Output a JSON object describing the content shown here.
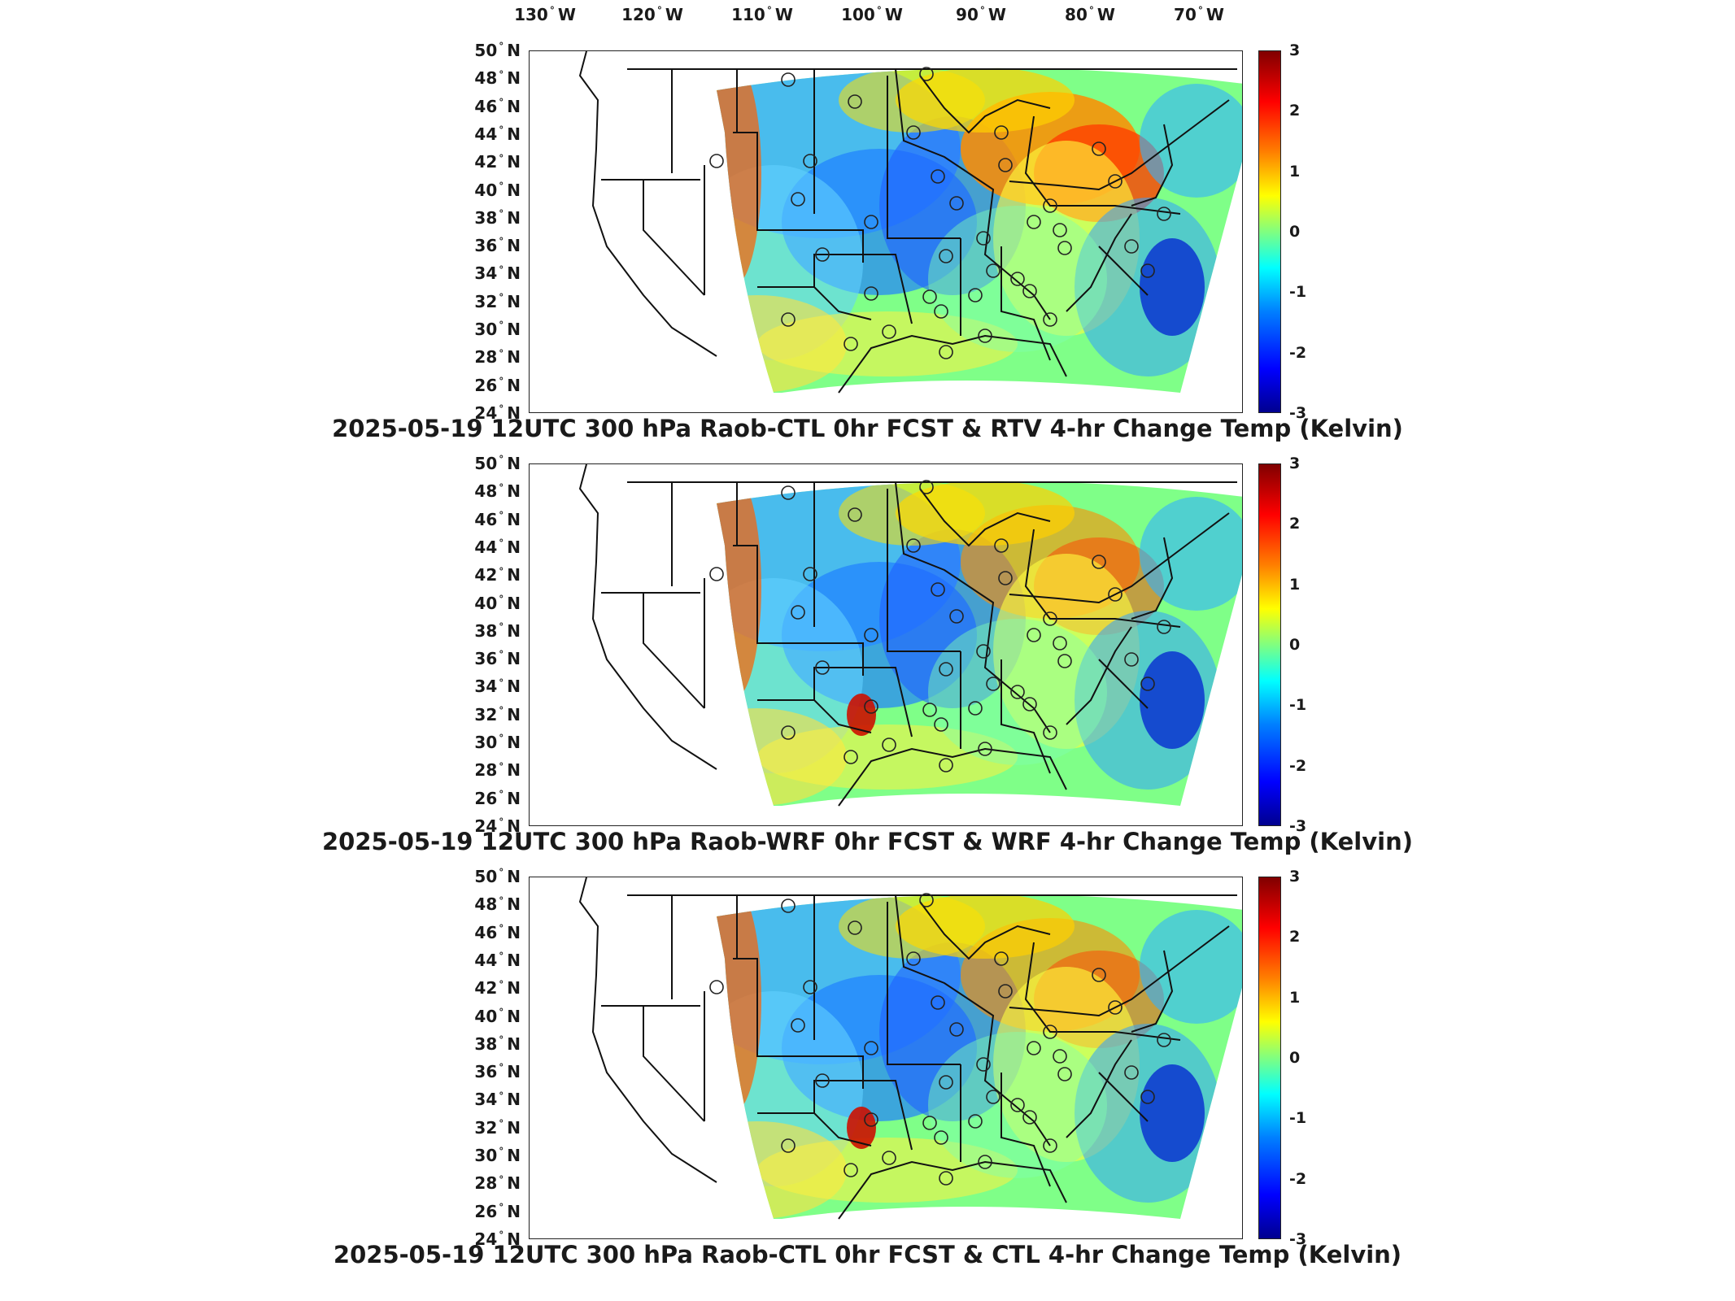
{
  "lon_labels": [
    "130",
    "120",
    "110",
    "100",
    "90",
    "80",
    "70"
  ],
  "lon_suffix": "W",
  "lat_labels": [
    "50",
    "48",
    "46",
    "44",
    "42",
    "40",
    "38",
    "36",
    "34",
    "32",
    "30",
    "28",
    "26",
    "24"
  ],
  "lat_suffix": "N",
  "degree_symbol": "°",
  "colorbar": {
    "ticks": [
      "3",
      "2",
      "1",
      "0",
      "-1",
      "-2",
      "-3"
    ],
    "range": [
      -3,
      3
    ],
    "colormap": "jet"
  },
  "panels": [
    {
      "title": "2025-05-19 12UTC 300 hPa Raob-CTL 0hr FCST & RTV 4-hr Change Temp (Kelvin)"
    },
    {
      "title": "2025-05-19 12UTC 300 hPa Raob-WRF 0hr FCST & WRF 4-hr Change Temp (Kelvin)"
    },
    {
      "title": "2025-05-19 12UTC 300 hPa Raob-CTL 0hr FCST & CTL 4-hr Change Temp (Kelvin)"
    }
  ],
  "colors": {
    "frame": "#222222",
    "boundaries": "#111111",
    "jet_low": "#00008f",
    "jet_mid": "#80ff80",
    "jet_high": "#800000"
  }
}
